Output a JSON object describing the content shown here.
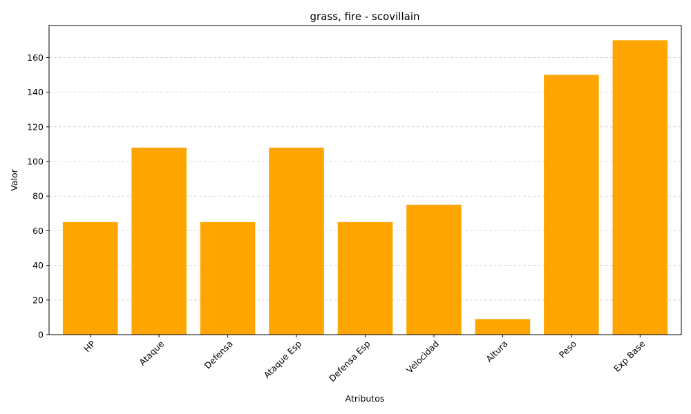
{
  "chart_data": {
    "type": "bar",
    "title": "grass, fire - scovillain",
    "xlabel": "Atributos",
    "ylabel": "Valor",
    "categories": [
      "HP",
      "Ataque",
      "Defensa",
      "Ataque Esp",
      "Defensa Esp",
      "Velocidad",
      "Altura",
      "Peso",
      "Exp Base"
    ],
    "values": [
      65,
      108,
      65,
      108,
      65,
      75,
      9,
      150,
      170
    ],
    "ylim": [
      0,
      178.5
    ],
    "yticks": [
      0,
      20,
      40,
      60,
      80,
      100,
      120,
      140,
      160
    ],
    "grid": "y-dashed",
    "bar_color": "#ffa500",
    "grid_color": "#cccccc",
    "legend": "none"
  }
}
